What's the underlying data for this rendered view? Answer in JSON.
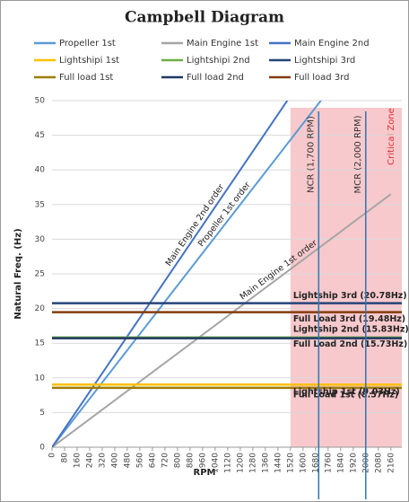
{
  "chart_data": {
    "type": "line",
    "title": "Campbell Diagram",
    "x_label": "RPM",
    "y_label": "Natural Freq. (Hz)",
    "xlim": [
      0,
      2230
    ],
    "xticks": [
      0,
      80,
      160,
      240,
      320,
      400,
      480,
      560,
      640,
      720,
      800,
      880,
      960,
      1040,
      1120,
      1200,
      1280,
      1360,
      1440,
      1520,
      1600,
      1680,
      1760,
      1840,
      1920,
      2000,
      2080,
      2160
    ],
    "ylim": [
      0,
      50
    ],
    "yticks": [
      0,
      5,
      10,
      15,
      20,
      25,
      30,
      35,
      40,
      45,
      50
    ],
    "grid": true,
    "series": [
      {
        "name": "Propeller 1st",
        "color": "#5b9bd5",
        "x": [
          0,
          1714
        ],
        "values": [
          0,
          50
        ],
        "label": "Propeller 1st order"
      },
      {
        "name": "Main Engine 1st",
        "color": "#a5a5a5",
        "x": [
          0,
          2160
        ],
        "values": [
          0,
          36.5
        ],
        "label": "Main Engine 1st order"
      },
      {
        "name": "Main Engine 2nd",
        "color": "#4472c4",
        "x": [
          0,
          1500
        ],
        "values": [
          0,
          50
        ],
        "label": "Main Engine 2nd order"
      },
      {
        "name": "Lightshipi 1st",
        "color": "#ffc000",
        "x": [
          0,
          2230
        ],
        "values": [
          9.03,
          9.03
        ],
        "label": "Lightship 1st (9.03Hz)"
      },
      {
        "name": "Lightshipi 2nd",
        "color": "#70ad47",
        "x": [
          0,
          2230
        ],
        "values": [
          15.83,
          15.83
        ],
        "label": "Lightship 2nd (15.83Hz)"
      },
      {
        "name": "Lightshipi 3rd",
        "color": "#264478",
        "x": [
          0,
          2230
        ],
        "values": [
          20.78,
          20.78
        ],
        "label": "Lightship 3rd (20.78Hz)"
      },
      {
        "name": "Full load 1st",
        "color": "#9e7b00",
        "x": [
          0,
          2230
        ],
        "values": [
          8.57,
          8.57
        ],
        "label": "Full Load 1st (8.57Hz)"
      },
      {
        "name": "Full load 2nd",
        "color": "#1f3864",
        "x": [
          0,
          2230
        ],
        "values": [
          15.73,
          15.73
        ],
        "label": "Full Load 2nd (15.73Hz)"
      },
      {
        "name": "Full load 3rd",
        "color": "#843c0c",
        "x": [
          0,
          2230
        ],
        "values": [
          19.48,
          19.48
        ],
        "label": "Full Load 3rd (19.48Hz)"
      }
    ],
    "critical_zone": {
      "label": "Critical Zone",
      "xlim": [
        1520,
        2230
      ],
      "color": "#f8c9cc"
    },
    "markers": [
      {
        "label": "NCR (1,700 RPM)",
        "x": 1700,
        "color": "#2e75b6"
      },
      {
        "label": "MCR (2,000 RPM)",
        "x": 2000,
        "color": "#2e75b6"
      }
    ]
  }
}
